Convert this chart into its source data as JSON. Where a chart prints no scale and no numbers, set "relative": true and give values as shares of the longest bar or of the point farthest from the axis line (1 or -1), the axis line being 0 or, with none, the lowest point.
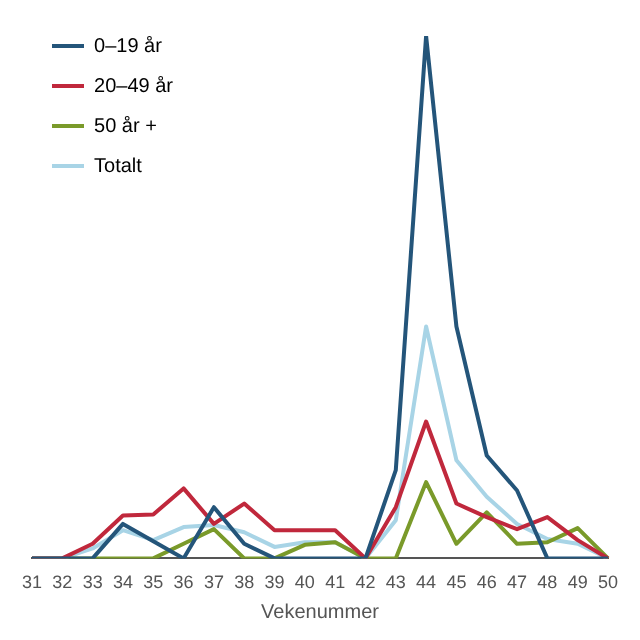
{
  "chart_data": {
    "type": "line",
    "relative": true,
    "xlabel": "Vekenummer",
    "legend": "top left",
    "grid": false,
    "marker": "none",
    "line_style": "solid",
    "categories": [
      "31",
      "32",
      "33",
      "34",
      "35",
      "36",
      "37",
      "38",
      "39",
      "40",
      "41",
      "42",
      "43",
      "44",
      "45",
      "46",
      "47",
      "48",
      "49",
      "50"
    ],
    "series": [
      {
        "name": "0–19 år",
        "color": "#24557a",
        "values": [
          0,
          0,
          0,
          0.066,
          0.033,
          0,
          0.098,
          0.028,
          0,
          0,
          0,
          0,
          0.169,
          1,
          0.444,
          0.197,
          0.13,
          0,
          0,
          0
        ]
      },
      {
        "name": "20–49 år",
        "color": "#c0283c",
        "values": [
          0,
          0,
          0.028,
          0.082,
          0.084,
          0.134,
          0.066,
          0.105,
          0.054,
          0.054,
          0.054,
          0,
          0.098,
          0.262,
          0.105,
          0.079,
          0.056,
          0.079,
          0.035,
          0
        ]
      },
      {
        "name": "50 år +",
        "color": "#7a9a2a",
        "values": [
          0,
          0,
          0,
          0,
          0,
          0.028,
          0.056,
          0,
          0,
          0.026,
          0.031,
          0,
          0,
          0.146,
          0.028,
          0.088,
          0.028,
          0.031,
          0.058,
          0
        ]
      },
      {
        "name": "Totalt",
        "color": "#a8d4e6",
        "values": [
          0,
          0,
          0.019,
          0.054,
          0.035,
          0.06,
          0.064,
          0.05,
          0.022,
          0.031,
          0.031,
          0,
          0.073,
          0.444,
          0.188,
          0.118,
          0.066,
          0.037,
          0.028,
          0
        ]
      }
    ]
  }
}
